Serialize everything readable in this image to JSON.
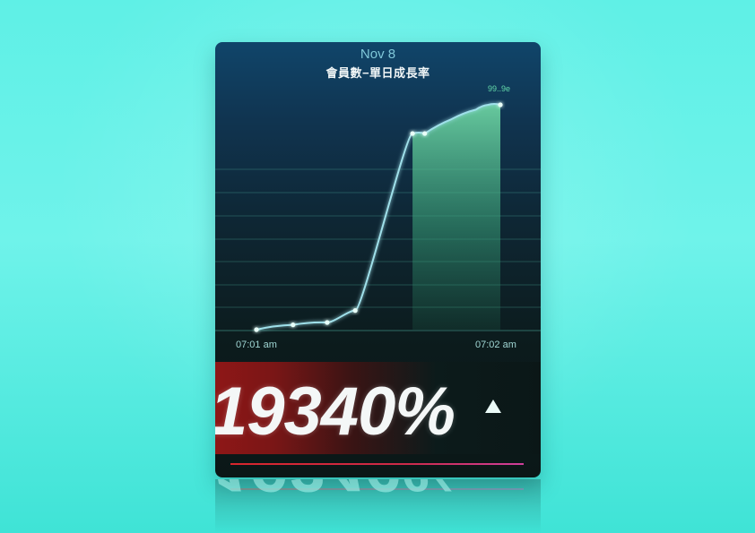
{
  "card": {
    "date": "Nov 8",
    "title": "會員數−單日成長率",
    "metric": "19340%",
    "trend_icon": "triangle-up-icon"
  },
  "colors": {
    "page_background": "#6ff3ea",
    "card_background": "#0b1717",
    "line": "#9fe0ea",
    "area_fill": "#5fc89a",
    "points": "#d8fff4",
    "metric_band": "#8e1717",
    "accent_line_start": "#d8262c",
    "accent_line_end": "#cf3f9c"
  },
  "chart_data": {
    "type": "area",
    "title": "會員數−單日成長率",
    "x_ticks": [
      "07:01 am",
      "07:02 am"
    ],
    "series": [
      {
        "values": [
          0,
          2,
          3,
          8,
          82,
          82,
          88,
          92,
          94,
          94
        ]
      }
    ],
    "ylim": [
      0,
      100
    ],
    "grid": true,
    "annotations": [
      {
        "label": "99..9e"
      }
    ]
  }
}
